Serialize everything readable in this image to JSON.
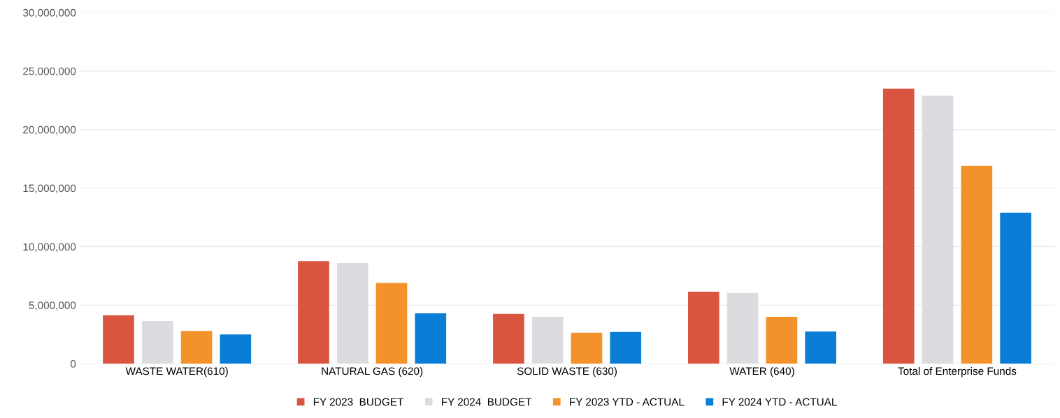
{
  "chart_data": {
    "type": "bar",
    "categories": [
      "WASTE WATER(610)",
      "NATURAL GAS (620)",
      "SOLID WASTE (630)",
      "WATER (640)",
      "Total of Enterprise Funds"
    ],
    "series": [
      {
        "name": "FY 2023  BUDGET",
        "color": "#d9553f",
        "values": [
          4130000,
          8750000,
          4250000,
          6150000,
          23500000
        ]
      },
      {
        "name": "FY 2024  BUDGET",
        "color": "#dcdce0",
        "values": [
          3650000,
          8600000,
          4000000,
          6050000,
          22900000
        ]
      },
      {
        "name": "FY 2023 YTD - ACTUAL",
        "color": "#f3922a",
        "values": [
          2800000,
          6900000,
          2650000,
          4000000,
          16900000
        ]
      },
      {
        "name": "FY 2024 YTD - ACTUAL",
        "color": "#0a7ed6",
        "values": [
          2500000,
          4300000,
          2700000,
          2750000,
          12900000
        ]
      }
    ],
    "ylim": [
      0,
      30000000
    ],
    "yticks": [
      {
        "value": 0,
        "label": "0"
      },
      {
        "value": 5000000,
        "label": "5,000,000"
      },
      {
        "value": 10000000,
        "label": "10,000,000"
      },
      {
        "value": 15000000,
        "label": "15,000,000"
      },
      {
        "value": 20000000,
        "label": "20,000,000"
      },
      {
        "value": 25000000,
        "label": "25,000,000"
      },
      {
        "value": 30000000,
        "label": "30,000,000"
      }
    ],
    "grid": "y",
    "legend": "bottom"
  }
}
